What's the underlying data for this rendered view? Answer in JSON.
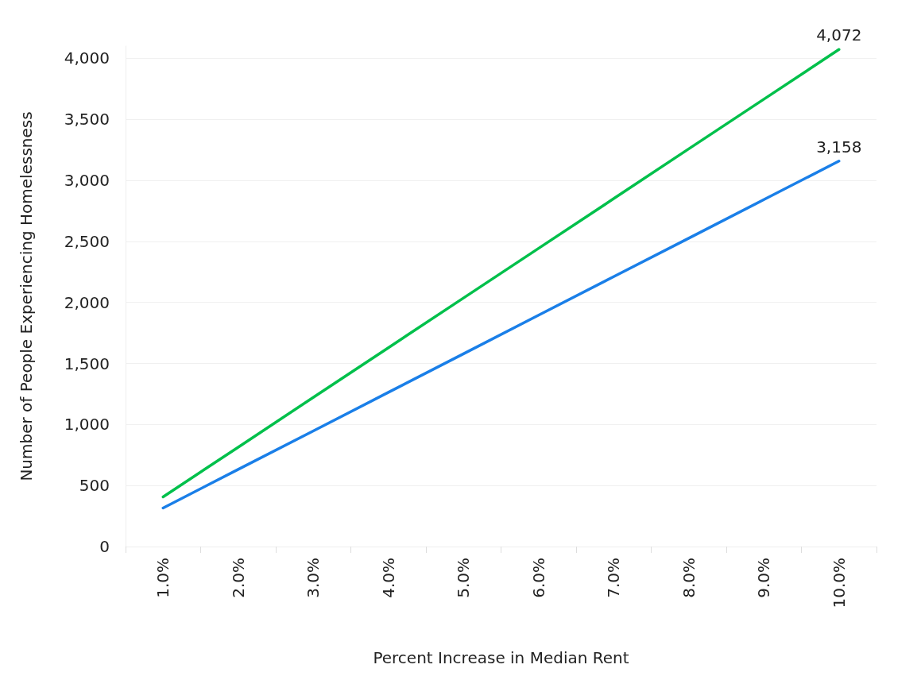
{
  "chart_data": {
    "type": "line",
    "xlabel": "Percent Increase in Median Rent",
    "ylabel": "Number of People Experiencing Homelessness",
    "categories": [
      "1.0%",
      "2.0%",
      "3.0%",
      "4.0%",
      "5.0%",
      "6.0%",
      "7.0%",
      "8.0%",
      "9.0%",
      "10.0%"
    ],
    "series": [
      {
        "color": "#00c04b",
        "values": [
          407,
          814,
          1222,
          1629,
          2036,
          2443,
          2850,
          3258,
          3665,
          4072
        ],
        "value_labels": [
          null,
          null,
          null,
          null,
          null,
          null,
          null,
          null,
          null,
          "4,072"
        ]
      },
      {
        "color": "#1a7fe8",
        "values": [
          316,
          632,
          947,
          1263,
          1579,
          1895,
          2211,
          2526,
          2842,
          3158
        ],
        "value_labels": [
          null,
          null,
          null,
          null,
          null,
          null,
          null,
          null,
          null,
          "3,158"
        ]
      }
    ],
    "ylim": [
      0,
      4100
    ],
    "yticks": [
      {
        "value": 0,
        "label": "0"
      },
      {
        "value": 500,
        "label": "500"
      },
      {
        "value": 1000,
        "label": "1,000"
      },
      {
        "value": 1500,
        "label": "1,500"
      },
      {
        "value": 2000,
        "label": "2,000"
      },
      {
        "value": 2500,
        "label": "2,500"
      },
      {
        "value": 3000,
        "label": "3,000"
      },
      {
        "value": 3500,
        "label": "3,500"
      },
      {
        "value": 4000,
        "label": "4,000"
      }
    ],
    "grid": "y",
    "marker": "none",
    "line_style": "solid"
  }
}
